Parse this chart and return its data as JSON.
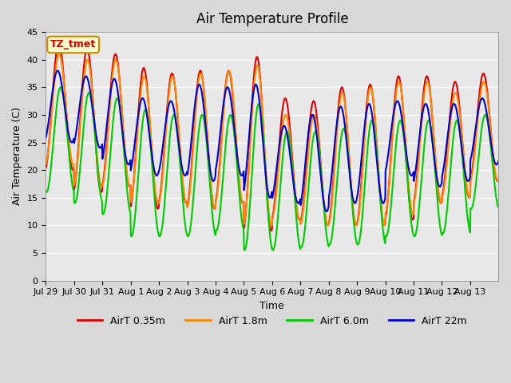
{
  "title": "Air Temperature Profile",
  "xlabel": "Time",
  "ylabel": "Air Temperature (C)",
  "ylim": [
    0,
    45
  ],
  "yticks": [
    0,
    5,
    10,
    15,
    20,
    25,
    30,
    35,
    40,
    45
  ],
  "annotation_text": "TZ_tmet",
  "annotation_bg": "#ffffcc",
  "annotation_border": "#cc8800",
  "annotation_text_color": "#cc0000",
  "grid_color": "white",
  "legend_entries": [
    "AirT 0.35m",
    "AirT 1.8m",
    "AirT 6.0m",
    "AirT 22m"
  ],
  "line_colors": [
    "#dd0000",
    "#ff8800",
    "#00cc00",
    "#0000cc"
  ],
  "line_width": 1.5,
  "figsize": [
    6.4,
    4.8
  ],
  "dpi": 100,
  "date_labels": [
    "Jul 29",
    "Jul 30",
    "Jul 31",
    "Aug 1",
    "Aug 2",
    "Aug 3",
    "Aug 4",
    "Aug 5",
    "Aug 6",
    "Aug 7",
    "Aug 8",
    "Aug 9",
    "Aug 10",
    "Aug 11",
    "Aug 12",
    "Aug 13"
  ],
  "peaks_035": [
    43,
    42,
    41,
    38.5,
    37.5,
    38,
    38,
    40.5,
    33,
    32.5,
    35,
    35.5,
    37,
    37,
    36,
    37.5
  ],
  "troughs_035": [
    20,
    16,
    17,
    13,
    14,
    13,
    14,
    9,
    11,
    10,
    10,
    10,
    11,
    14,
    15,
    18
  ],
  "peaks_18": [
    41,
    40,
    40,
    37,
    37,
    37.5,
    38,
    39,
    30,
    30,
    34,
    35,
    36,
    36,
    34,
    36
  ],
  "troughs_18": [
    21,
    17,
    17,
    14,
    14,
    13,
    14,
    10,
    11,
    10,
    10,
    10,
    12,
    14,
    15,
    18
  ],
  "peaks_60": [
    35,
    34,
    33,
    31,
    30,
    30,
    30,
    32,
    27,
    27,
    27.5,
    29,
    29,
    29,
    29,
    30
  ],
  "troughs_60": [
    16,
    14,
    12,
    8,
    8,
    8,
    9,
    5.5,
    5.5,
    6,
    6.5,
    6.5,
    8,
    8,
    8.5,
    13
  ],
  "peaks_22": [
    38,
    37,
    36.5,
    33,
    32.5,
    35.5,
    35,
    35.5,
    28,
    30,
    31.5,
    32,
    32.5,
    32,
    32,
    33
  ],
  "troughs_22": [
    25,
    24,
    21,
    19,
    19,
    18,
    19,
    15,
    14,
    12.5,
    14,
    14,
    19,
    17,
    18,
    21
  ],
  "phase_shifts": [
    0,
    0.3,
    1.5,
    -1.0
  ]
}
